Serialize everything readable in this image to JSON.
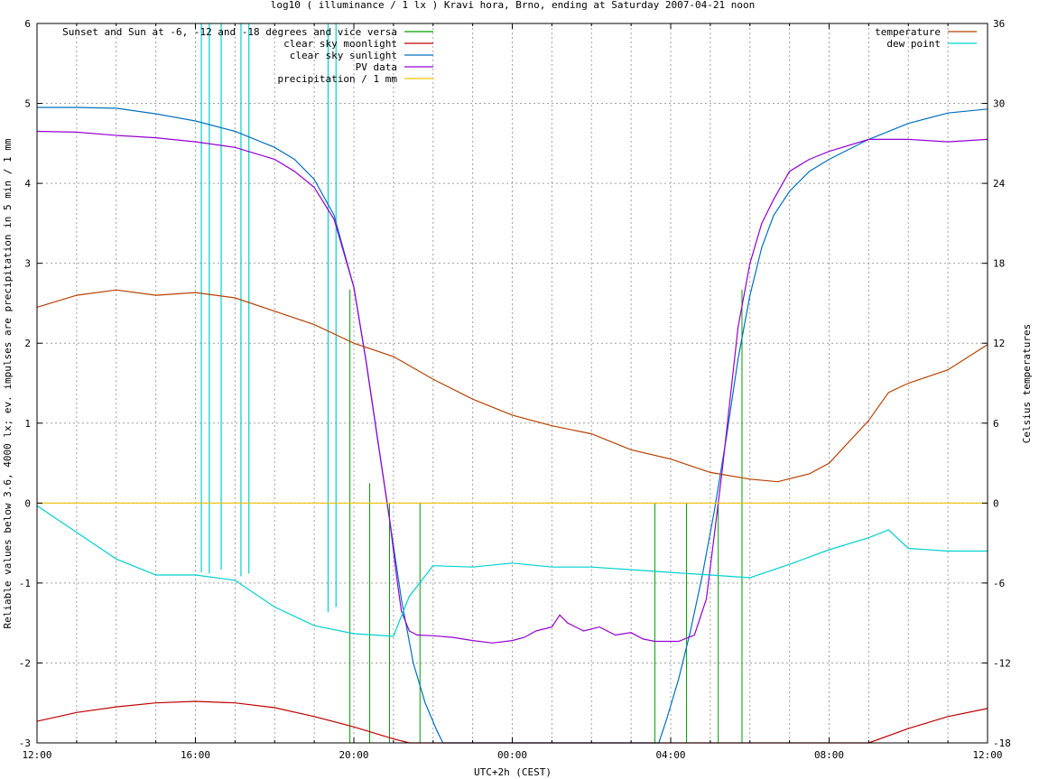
{
  "chart_data": {
    "type": "line",
    "title": "log10 ( illuminance / 1 lx ) Kravi hora, Brno, ending at Saturday 2007-04-21 noon",
    "xlabel": "UTC+2h (CEST)",
    "ylabel": "Reliable values below 3.6, 4000 lx; ev. impulses are precipitation in 5 min / 1 mm",
    "y2label": "Celsius temperatures",
    "x_unit": "hours since 12:00",
    "xlim": [
      0,
      24
    ],
    "ylim": [
      -3,
      6
    ],
    "y2lim": [
      -18,
      36
    ],
    "x_ticks": [
      {
        "x": 0,
        "label": "12:00"
      },
      {
        "x": 4,
        "label": "16:00"
      },
      {
        "x": 8,
        "label": "20:00"
      },
      {
        "x": 12,
        "label": "00:00"
      },
      {
        "x": 16,
        "label": "04:00"
      },
      {
        "x": 20,
        "label": "08:00"
      },
      {
        "x": 24,
        "label": "12:00"
      }
    ],
    "y_ticks": [
      -3,
      -2,
      -1,
      0,
      1,
      2,
      3,
      4,
      5,
      6
    ],
    "y2_ticks": [
      -18,
      -12,
      -6,
      0,
      6,
      12,
      18,
      24,
      30,
      36
    ],
    "grid": true,
    "legend_left": {
      "position": "top-left",
      "entries": [
        {
          "label": "Sunset and Sun at -6, -12 and -18 degrees and vice versa",
          "color": "#00a000"
        },
        {
          "label": "clear sky moonlight",
          "color": "#c00000"
        },
        {
          "label": "clear sky sunlight",
          "color": "#0070c0"
        },
        {
          "label": "PV data",
          "color": "#9400d3"
        },
        {
          "label": "precipitation / 1 mm",
          "color": "#f0c000"
        }
      ]
    },
    "legend_right": {
      "position": "top-right",
      "entries": [
        {
          "label": "temperature",
          "color": "#b84000"
        },
        {
          "label": "dew point",
          "color": "#00d0d0"
        }
      ]
    },
    "series": [
      {
        "name": "clear sky sunlight",
        "color": "#0070c0",
        "axis": "y",
        "points": [
          [
            0,
            4.95
          ],
          [
            1,
            4.95
          ],
          [
            2,
            4.94
          ],
          [
            3,
            4.87
          ],
          [
            4,
            4.78
          ],
          [
            5,
            4.65
          ],
          [
            6,
            4.45
          ],
          [
            6.5,
            4.3
          ],
          [
            7,
            4.05
          ],
          [
            7.5,
            3.6
          ],
          [
            8,
            2.7
          ],
          [
            8.3,
            1.8
          ],
          [
            8.6,
            0.8
          ],
          [
            8.9,
            -0.2
          ],
          [
            9.2,
            -1.2
          ],
          [
            9.5,
            -2.0
          ],
          [
            9.8,
            -2.5
          ],
          [
            10.1,
            -2.85
          ],
          [
            10.25,
            -3.0
          ],
          [
            15.7,
            -3.0
          ],
          [
            15.9,
            -2.7
          ],
          [
            16.2,
            -2.2
          ],
          [
            16.5,
            -1.6
          ],
          [
            16.8,
            -0.9
          ],
          [
            17.1,
            -0.1
          ],
          [
            17.4,
            0.8
          ],
          [
            17.7,
            1.8
          ],
          [
            18.0,
            2.6
          ],
          [
            18.3,
            3.2
          ],
          [
            18.6,
            3.6
          ],
          [
            19.0,
            3.9
          ],
          [
            19.5,
            4.15
          ],
          [
            20,
            4.3
          ],
          [
            21,
            4.55
          ],
          [
            22,
            4.75
          ],
          [
            23,
            4.88
          ],
          [
            24,
            4.93
          ]
        ]
      },
      {
        "name": "PV data",
        "color": "#9400d3",
        "axis": "y",
        "points": [
          [
            0,
            4.65
          ],
          [
            1,
            4.64
          ],
          [
            2,
            4.6
          ],
          [
            3,
            4.57
          ],
          [
            4,
            4.52
          ],
          [
            5,
            4.45
          ],
          [
            6,
            4.3
          ],
          [
            6.5,
            4.15
          ],
          [
            7,
            3.95
          ],
          [
            7.5,
            3.55
          ],
          [
            8,
            2.7
          ],
          [
            8.3,
            1.8
          ],
          [
            8.6,
            0.8
          ],
          [
            8.9,
            -0.2
          ],
          [
            9.1,
            -1.0
          ],
          [
            9.2,
            -1.35
          ],
          [
            9.4,
            -1.6
          ],
          [
            9.6,
            -1.65
          ],
          [
            10,
            -1.66
          ],
          [
            10.5,
            -1.68
          ],
          [
            11,
            -1.72
          ],
          [
            11.5,
            -1.75
          ],
          [
            12,
            -1.72
          ],
          [
            12.3,
            -1.68
          ],
          [
            12.6,
            -1.6
          ],
          [
            13,
            -1.55
          ],
          [
            13.2,
            -1.4
          ],
          [
            13.4,
            -1.5
          ],
          [
            13.8,
            -1.6
          ],
          [
            14.2,
            -1.55
          ],
          [
            14.6,
            -1.65
          ],
          [
            15,
            -1.62
          ],
          [
            15.3,
            -1.7
          ],
          [
            15.6,
            -1.73
          ],
          [
            16.2,
            -1.73
          ],
          [
            16.6,
            -1.65
          ],
          [
            16.9,
            -1.2
          ],
          [
            17.1,
            -0.4
          ],
          [
            17.3,
            0.4
          ],
          [
            17.5,
            1.3
          ],
          [
            17.7,
            2.2
          ],
          [
            18,
            3.0
          ],
          [
            18.3,
            3.5
          ],
          [
            18.6,
            3.8
          ],
          [
            19,
            4.15
          ],
          [
            19.5,
            4.3
          ],
          [
            20,
            4.4
          ],
          [
            21,
            4.55
          ],
          [
            22,
            4.55
          ],
          [
            23,
            4.52
          ],
          [
            24,
            4.55
          ]
        ]
      },
      {
        "name": "clear sky moonlight",
        "color": "#c00000",
        "axis": "y",
        "points": [
          [
            0,
            -2.73
          ],
          [
            1,
            -2.62
          ],
          [
            2,
            -2.55
          ],
          [
            3,
            -2.5
          ],
          [
            4,
            -2.48
          ],
          [
            5,
            -2.5
          ],
          [
            6,
            -2.56
          ],
          [
            7,
            -2.67
          ],
          [
            8,
            -2.8
          ],
          [
            9,
            -2.95
          ],
          [
            9.4,
            -3.0
          ],
          [
            21.0,
            -3.0
          ],
          [
            22,
            -2.82
          ],
          [
            23,
            -2.67
          ],
          [
            24,
            -2.57
          ]
        ]
      },
      {
        "name": "precipitation / 1 mm",
        "color": "#f0c000",
        "axis": "y",
        "points": [
          [
            0,
            0
          ],
          [
            24,
            0
          ]
        ]
      },
      {
        "name": "temperature",
        "color": "#b84000",
        "axis": "y2",
        "points": [
          [
            0,
            14.7
          ],
          [
            1,
            15.6
          ],
          [
            2,
            16.0
          ],
          [
            3,
            15.6
          ],
          [
            4,
            15.8
          ],
          [
            5,
            15.4
          ],
          [
            6,
            14.4
          ],
          [
            7,
            13.4
          ],
          [
            8,
            12.0
          ],
          [
            9,
            11.0
          ],
          [
            10,
            9.3
          ],
          [
            11,
            7.8
          ],
          [
            12,
            6.6
          ],
          [
            13,
            5.8
          ],
          [
            14,
            5.2
          ],
          [
            15,
            4.0
          ],
          [
            16,
            3.3
          ],
          [
            17,
            2.3
          ],
          [
            18,
            1.8
          ],
          [
            18.7,
            1.6
          ],
          [
            19.5,
            2.2
          ],
          [
            20,
            3.0
          ],
          [
            21,
            6.2
          ],
          [
            21.5,
            8.3
          ],
          [
            22,
            9.0
          ],
          [
            23,
            10.0
          ],
          [
            24,
            11.9
          ]
        ]
      },
      {
        "name": "dew point",
        "color": "#00d0d0",
        "axis": "y2",
        "points": [
          [
            0,
            -0.2
          ],
          [
            1,
            -2.2
          ],
          [
            2,
            -4.2
          ],
          [
            3,
            -5.4
          ],
          [
            4,
            -5.4
          ],
          [
            5,
            -5.8
          ],
          [
            6,
            -7.8
          ],
          [
            7,
            -9.2
          ],
          [
            8,
            -9.8
          ],
          [
            9,
            -10.0
          ],
          [
            9.4,
            -7.0
          ],
          [
            10,
            -4.7
          ],
          [
            11,
            -4.8
          ],
          [
            12,
            -4.5
          ],
          [
            13,
            -4.8
          ],
          [
            14,
            -4.8
          ],
          [
            15,
            -5.0
          ],
          [
            16,
            -5.2
          ],
          [
            17,
            -5.4
          ],
          [
            18,
            -5.6
          ],
          [
            19,
            -4.6
          ],
          [
            20,
            -3.5
          ],
          [
            21,
            -2.6
          ],
          [
            21.5,
            -2.0
          ],
          [
            22,
            -3.4
          ],
          [
            23,
            -3.6
          ],
          [
            24,
            -3.6
          ]
        ]
      }
    ],
    "dew_point_spikes": [
      {
        "x": 4.15,
        "y2": -5.2
      },
      {
        "x": 4.35,
        "y2": -5.3
      },
      {
        "x": 4.65,
        "y2": -5.0
      },
      {
        "x": 5.15,
        "y2": -5.5
      },
      {
        "x": 5.35,
        "y2": -5.3
      },
      {
        "x": 7.35,
        "y2": -8.2
      },
      {
        "x": 7.55,
        "y2": -7.8
      }
    ],
    "sun_markers": [
      {
        "x": 7.9,
        "y_top": 2.67
      },
      {
        "x": 8.4,
        "y_top": 0.25
      },
      {
        "x": 8.9,
        "y_top": 0
      },
      {
        "x": 9.67,
        "y_top": 0
      },
      {
        "x": 15.6,
        "y_top": 0
      },
      {
        "x": 16.4,
        "y_top": 0
      },
      {
        "x": 17.2,
        "y_top": 0
      },
      {
        "x": 17.8,
        "y_top": 2.67
      }
    ]
  }
}
